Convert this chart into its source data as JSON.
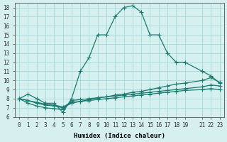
{
  "xlabel": "Humidex (Indice chaleur)",
  "bg_color": "#d6f0f0",
  "line_color": "#1a7a6e",
  "grid_color": "#aadddd",
  "lines": [
    {
      "x": [
        0,
        1,
        2,
        3,
        4,
        5,
        6,
        7,
        8,
        9,
        10,
        11,
        12,
        13,
        14,
        15,
        16,
        17,
        18,
        19,
        21,
        22,
        23
      ],
      "y": [
        8,
        8.5,
        8,
        7.5,
        7.5,
        6.5,
        8,
        11,
        12.5,
        15,
        15,
        17,
        18,
        18.2,
        17.5,
        15,
        15,
        13,
        12,
        12,
        11,
        10.5,
        9.7
      ]
    },
    {
      "x": [
        0,
        1,
        2,
        3,
        4,
        5,
        6,
        7,
        8,
        9,
        10,
        11,
        12,
        13,
        14,
        15,
        16,
        17,
        18,
        19,
        21,
        22,
        23
      ],
      "y": [
        8,
        7.8,
        7.5,
        7.3,
        7.2,
        7.0,
        7.5,
        7.7,
        7.9,
        8.1,
        8.2,
        8.4,
        8.5,
        8.7,
        8.8,
        9.0,
        9.2,
        9.4,
        9.6,
        9.7,
        10.0,
        10.3,
        9.8
      ]
    },
    {
      "x": [
        0,
        1,
        2,
        3,
        4,
        5,
        6,
        7,
        8,
        9,
        10,
        11,
        12,
        13,
        14,
        15,
        16,
        17,
        18,
        19,
        21,
        22,
        23
      ],
      "y": [
        8,
        7.5,
        7.2,
        7.0,
        6.9,
        6.8,
        7.8,
        7.9,
        8.0,
        8.1,
        8.2,
        8.3,
        8.4,
        8.5,
        8.6,
        8.7,
        8.8,
        8.9,
        9.0,
        9.1,
        9.3,
        9.5,
        9.4
      ]
    },
    {
      "x": [
        0,
        1,
        2,
        3,
        4,
        5,
        6,
        7,
        8,
        9,
        10,
        11,
        12,
        13,
        14,
        15,
        16,
        17,
        18,
        19,
        21,
        22,
        23
      ],
      "y": [
        8,
        7.8,
        7.6,
        7.4,
        7.3,
        7.1,
        7.6,
        7.7,
        7.8,
        7.9,
        8.0,
        8.1,
        8.2,
        8.3,
        8.4,
        8.5,
        8.6,
        8.7,
        8.8,
        8.9,
        9.0,
        9.1,
        9.0
      ]
    }
  ],
  "xlim": [
    -0.5,
    23.5
  ],
  "ylim": [
    6,
    18.5
  ],
  "yticks": [
    6,
    7,
    8,
    9,
    10,
    11,
    12,
    13,
    14,
    15,
    16,
    17,
    18
  ],
  "xtick_positions": [
    0,
    1,
    2,
    3,
    4,
    5,
    6,
    7,
    8,
    9,
    10,
    11,
    12,
    13,
    14,
    15,
    16,
    17,
    18,
    19,
    21,
    22,
    23
  ],
  "xtick_labels": [
    "0",
    "1",
    "2",
    "3",
    "4",
    "5",
    "6",
    "7",
    "8",
    "9",
    "10",
    "11",
    "12",
    "13",
    "14",
    "15",
    "16",
    "17",
    "18",
    "19",
    "21",
    "22",
    "23"
  ]
}
